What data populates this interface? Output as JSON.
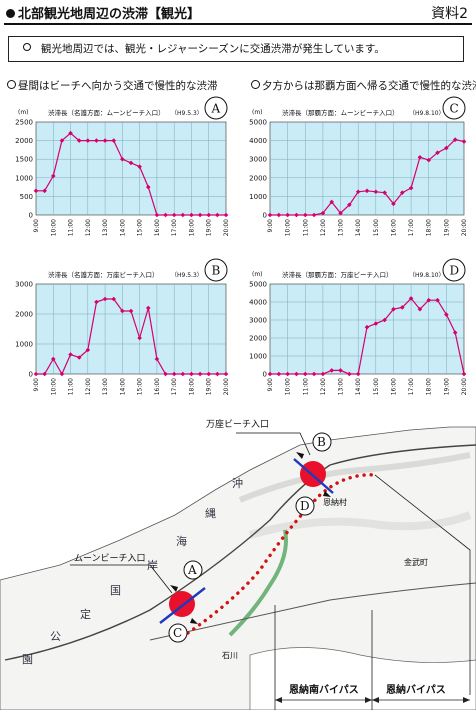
{
  "header": {
    "title": "北部観光地周辺の渋滞【観光】",
    "doc_label": "資料2"
  },
  "summary": "観光地周辺では、観光・レジャーシーズンに交通渋滞が発生しています。",
  "sections": {
    "left_heading": "昼間はビーチへ向かう交通で慢性的な渋滞",
    "right_heading": "夕方からは那覇方面へ帰る交通で慢性的な渋滞"
  },
  "colors": {
    "plot_background": "#c9ecf7",
    "series": "#d6006e",
    "congestion_marker": "#e8102a",
    "route_dots": "#d41010",
    "sea": "#e9f2f7",
    "land": "#f4f4f2"
  },
  "chart_data": [
    {
      "id": "A",
      "type": "line",
      "title": "渋滞長（名護方面：ムーンビーチ入口）",
      "date": "（H9.5.3）",
      "unit": "(m)",
      "x": [
        "9:00",
        "10:00",
        "11:00",
        "12:00",
        "13:00",
        "14:00",
        "15:00",
        "16:00",
        "17:00",
        "18:00",
        "19:00",
        "20:00"
      ],
      "y_points": [
        {
          "t": "9:00",
          "v": 650
        },
        {
          "t": "9:30",
          "v": 650
        },
        {
          "t": "10:00",
          "v": 1050
        },
        {
          "t": "10:30",
          "v": 2000
        },
        {
          "t": "11:00",
          "v": 2200
        },
        {
          "t": "11:30",
          "v": 2000
        },
        {
          "t": "12:00",
          "v": 2000
        },
        {
          "t": "12:30",
          "v": 2000
        },
        {
          "t": "13:00",
          "v": 2000
        },
        {
          "t": "13:30",
          "v": 2000
        },
        {
          "t": "14:00",
          "v": 1500
        },
        {
          "t": "14:30",
          "v": 1400
        },
        {
          "t": "15:00",
          "v": 1300
        },
        {
          "t": "15:30",
          "v": 750
        },
        {
          "t": "16:00",
          "v": 0
        },
        {
          "t": "16:30",
          "v": 0
        },
        {
          "t": "17:00",
          "v": 0
        },
        {
          "t": "17:30",
          "v": 0
        },
        {
          "t": "18:00",
          "v": 0
        },
        {
          "t": "18:30",
          "v": 0
        },
        {
          "t": "19:00",
          "v": 0
        },
        {
          "t": "19:30",
          "v": 0
        },
        {
          "t": "20:00",
          "v": 0
        }
      ],
      "ylim": [
        0,
        2500
      ],
      "yticks": [
        "0",
        "500",
        "1000",
        "1500",
        "2000",
        "2500"
      ]
    },
    {
      "id": "B",
      "type": "line",
      "title": "渋滞長（名護方面：万座ビーチ入口）",
      "date": "（H9.5.3）",
      "unit": "",
      "x": [
        "9:00",
        "10:00",
        "11:00",
        "12:00",
        "13:00",
        "14:00",
        "15:00",
        "16:00",
        "17:00",
        "18:00",
        "19:00",
        "20:00"
      ],
      "y_points": [
        {
          "t": "9:00",
          "v": 0
        },
        {
          "t": "9:30",
          "v": 0
        },
        {
          "t": "10:00",
          "v": 500
        },
        {
          "t": "10:30",
          "v": 0
        },
        {
          "t": "11:00",
          "v": 650
        },
        {
          "t": "11:30",
          "v": 550
        },
        {
          "t": "12:00",
          "v": 800
        },
        {
          "t": "12:30",
          "v": 2400
        },
        {
          "t": "13:00",
          "v": 2500
        },
        {
          "t": "13:30",
          "v": 2500
        },
        {
          "t": "14:00",
          "v": 2100
        },
        {
          "t": "14:30",
          "v": 2100
        },
        {
          "t": "15:00",
          "v": 1200
        },
        {
          "t": "15:30",
          "v": 2200
        },
        {
          "t": "16:00",
          "v": 500
        },
        {
          "t": "16:30",
          "v": 0
        },
        {
          "t": "17:00",
          "v": 0
        },
        {
          "t": "17:30",
          "v": 0
        },
        {
          "t": "18:00",
          "v": 0
        },
        {
          "t": "18:30",
          "v": 0
        },
        {
          "t": "19:00",
          "v": 0
        },
        {
          "t": "19:30",
          "v": 0
        },
        {
          "t": "20:00",
          "v": 0
        }
      ],
      "ylim": [
        0,
        3000
      ],
      "yticks": [
        "0",
        "1000",
        "2000",
        "3000"
      ]
    },
    {
      "id": "C",
      "type": "line",
      "title": "渋滞長（那覇方面：ムーンビーチ入口）",
      "date": "（H9.8.10）",
      "unit": "(m)",
      "x": [
        "9:00",
        "10:00",
        "11:00",
        "12:00",
        "13:00",
        "14:00",
        "15:00",
        "16:00",
        "17:00",
        "18:00",
        "19:00",
        "20:00"
      ],
      "y_points": [
        {
          "t": "9:00",
          "v": 0
        },
        {
          "t": "9:30",
          "v": 0
        },
        {
          "t": "10:00",
          "v": 0
        },
        {
          "t": "10:30",
          "v": 0
        },
        {
          "t": "11:00",
          "v": 0
        },
        {
          "t": "11:30",
          "v": 0
        },
        {
          "t": "12:00",
          "v": 100
        },
        {
          "t": "12:30",
          "v": 700
        },
        {
          "t": "13:00",
          "v": 100
        },
        {
          "t": "13:30",
          "v": 550
        },
        {
          "t": "14:00",
          "v": 1250
        },
        {
          "t": "14:30",
          "v": 1300
        },
        {
          "t": "15:00",
          "v": 1250
        },
        {
          "t": "15:30",
          "v": 1200
        },
        {
          "t": "16:00",
          "v": 600
        },
        {
          "t": "16:30",
          "v": 1200
        },
        {
          "t": "17:00",
          "v": 1450
        },
        {
          "t": "17:30",
          "v": 3100
        },
        {
          "t": "18:00",
          "v": 2950
        },
        {
          "t": "18:30",
          "v": 3350
        },
        {
          "t": "19:00",
          "v": 3600
        },
        {
          "t": "19:30",
          "v": 4050
        },
        {
          "t": "20:00",
          "v": 3950
        }
      ],
      "ylim": [
        0,
        5000
      ],
      "yticks": [
        "0",
        "1000",
        "2000",
        "3000",
        "4000",
        "5000"
      ]
    },
    {
      "id": "D",
      "type": "line",
      "title": "渋滞長（那覇方面：万座ビーチ入口）",
      "date": "（H9.8.10）",
      "unit": "(m)",
      "x": [
        "9:00",
        "10:00",
        "11:00",
        "12:00",
        "13:00",
        "14:00",
        "15:00",
        "16:00",
        "17:00",
        "18:00",
        "19:00",
        "20:00"
      ],
      "y_points": [
        {
          "t": "9:00",
          "v": 0
        },
        {
          "t": "9:30",
          "v": 0
        },
        {
          "t": "10:00",
          "v": 0
        },
        {
          "t": "10:30",
          "v": 0
        },
        {
          "t": "11:00",
          "v": 0
        },
        {
          "t": "11:30",
          "v": 0
        },
        {
          "t": "12:00",
          "v": 0
        },
        {
          "t": "12:30",
          "v": 200
        },
        {
          "t": "13:00",
          "v": 200
        },
        {
          "t": "13:30",
          "v": 0
        },
        {
          "t": "14:00",
          "v": 0
        },
        {
          "t": "14:30",
          "v": 2600
        },
        {
          "t": "15:00",
          "v": 2800
        },
        {
          "t": "15:30",
          "v": 3000
        },
        {
          "t": "16:00",
          "v": 3600
        },
        {
          "t": "16:30",
          "v": 3700
        },
        {
          "t": "17:00",
          "v": 4200
        },
        {
          "t": "17:30",
          "v": 3600
        },
        {
          "t": "18:00",
          "v": 4100
        },
        {
          "t": "18:30",
          "v": 4100
        },
        {
          "t": "19:00",
          "v": 3300
        },
        {
          "t": "19:30",
          "v": 2300
        },
        {
          "t": "20:00",
          "v": 0
        }
      ],
      "ylim": [
        0,
        5000
      ],
      "yticks": [
        "0",
        "1000",
        "2000",
        "3000",
        "4000",
        "5000"
      ]
    }
  ],
  "map": {
    "callout_manza": "万座ビーチ入口",
    "callout_moon": "ムーンビーチ入口",
    "badges": [
      "A",
      "B",
      "C",
      "D"
    ],
    "bypass_south": "恩納南バイパス",
    "bypass_north": "恩納バイパス",
    "sea_labels": [
      "沖",
      "縄",
      "海",
      "岸",
      "国",
      "定",
      "公",
      "園"
    ],
    "town_labels": [
      "恩納村",
      "金武町",
      "石川"
    ],
    "icon": "map-of-onna-coast"
  }
}
